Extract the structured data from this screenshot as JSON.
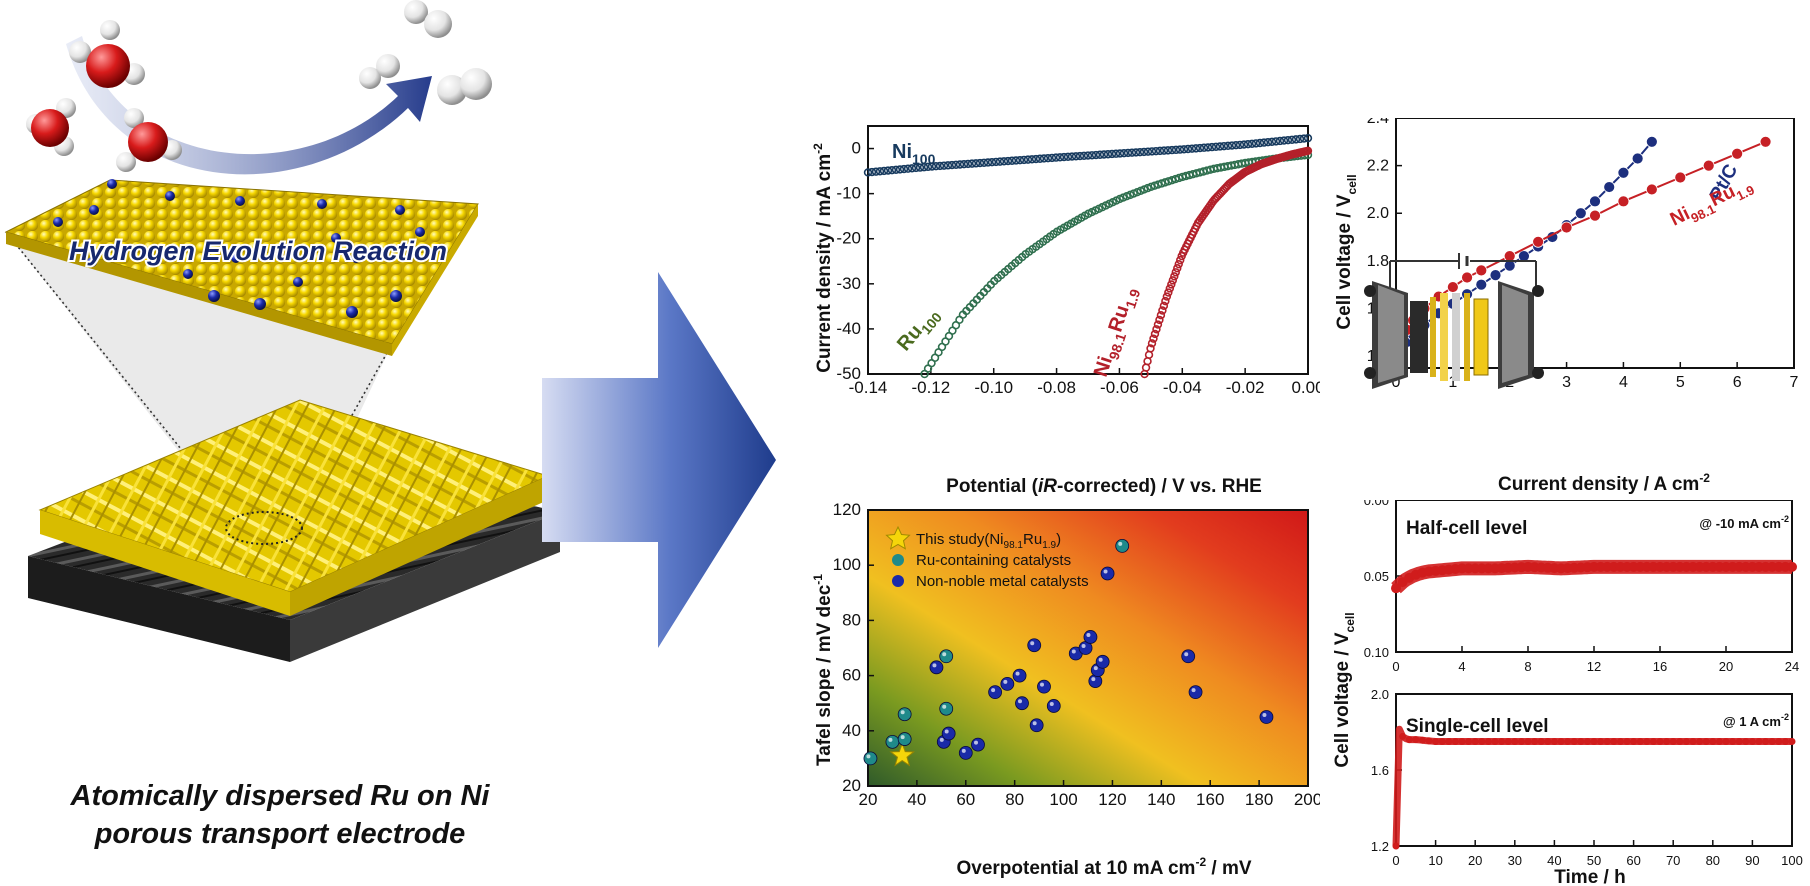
{
  "illustration": {
    "hero_label": "Hydrogen Evolution Reaction",
    "caption_line1": "Atomically dispersed Ru on Ni",
    "caption_line2": "porous transport electrode",
    "colors": {
      "nickel": "#f4d600",
      "ruthenium": "#1a2aa8",
      "oxygen": "#d81b1b",
      "hydrogen": "#f2f2f2",
      "support": "#2b2b2b"
    }
  },
  "chart_data": [
    {
      "type": "line",
      "id": "polarization",
      "xlabel": "Potential (iR-corrected) / V vs. RHE",
      "ylabel": "Current density / mA cm",
      "xlim": [
        -0.14,
        0.0
      ],
      "ylim": [
        -50,
        5
      ],
      "xticks": [
        -0.14,
        -0.12,
        -0.1,
        -0.08,
        -0.06,
        -0.04,
        -0.02,
        0.0
      ],
      "xtick_labels": [
        "-0.14",
        "-0.12",
        "-0.10",
        "-0.08",
        "-0.06",
        "-0.04",
        "-0.02",
        "0.00"
      ],
      "yticks": [
        0,
        -10,
        -20,
        -30,
        -40,
        -50
      ],
      "series": [
        {
          "name": "Ni100",
          "color": "#173a5e",
          "x": [
            -0.14,
            -0.12,
            -0.1,
            -0.08,
            -0.06,
            -0.04,
            -0.02,
            0.0
          ],
          "y": [
            -5.3,
            -4.0,
            -3.0,
            -2.0,
            -1.1,
            -0.2,
            0.9,
            2.3
          ]
        },
        {
          "name": "Ru100",
          "color": "#2f6f4e",
          "x": [
            -0.122,
            -0.11,
            -0.1,
            -0.09,
            -0.08,
            -0.07,
            -0.06,
            -0.05,
            -0.04,
            -0.03,
            -0.02,
            -0.01,
            0.0
          ],
          "y": [
            -50,
            -37,
            -29.5,
            -23.5,
            -18.5,
            -14.5,
            -11.2,
            -8.5,
            -6.3,
            -4.5,
            -3.2,
            -2.2,
            -1.4
          ]
        },
        {
          "name": "Ni98.1Ru1.9",
          "color": "#b3202a",
          "x": [
            -0.052,
            -0.05,
            -0.045,
            -0.04,
            -0.035,
            -0.03,
            -0.025,
            -0.02,
            -0.015,
            -0.01,
            -0.005,
            0.0
          ],
          "y": [
            -50,
            -44,
            -33,
            -23.5,
            -16.5,
            -11.5,
            -7.8,
            -5.2,
            -3.5,
            -2.3,
            -1.3,
            -0.5
          ]
        }
      ]
    },
    {
      "type": "scatter",
      "id": "tafel",
      "xlabel": "Overpotential at 10 mA cm",
      "ylabel": "Tafel slope / mV dec",
      "xlim": [
        20,
        200
      ],
      "ylim": [
        20,
        120
      ],
      "xticks": [
        20,
        40,
        60,
        80,
        100,
        120,
        140,
        160,
        180,
        200
      ],
      "yticks": [
        20,
        40,
        60,
        80,
        100,
        120
      ],
      "series": [
        {
          "name": "This study(Ni98.1Ru1.9)",
          "marker": "star",
          "color": "#f5d60a",
          "points": [
            [
              34,
              31
            ]
          ]
        },
        {
          "name": "Ru-containing catalysts",
          "marker": "ball",
          "color": "#1f8a8a",
          "points": [
            [
              21,
              30
            ],
            [
              30,
              36
            ],
            [
              35,
              37
            ],
            [
              35,
              46
            ],
            [
              52,
              48
            ],
            [
              52,
              67
            ],
            [
              124,
              107
            ]
          ]
        },
        {
          "name": "Non-noble metal catalysts",
          "marker": "ball",
          "color": "#1a2aa8",
          "points": [
            [
              48,
              63
            ],
            [
              51,
              36
            ],
            [
              53,
              39
            ],
            [
              60,
              32
            ],
            [
              65,
              35
            ],
            [
              72,
              54
            ],
            [
              77,
              57
            ],
            [
              82,
              60
            ],
            [
              83,
              50
            ],
            [
              88,
              71
            ],
            [
              89,
              42
            ],
            [
              92,
              56
            ],
            [
              96,
              49
            ],
            [
              105,
              68
            ],
            [
              109,
              70
            ],
            [
              111,
              74
            ],
            [
              113,
              58
            ],
            [
              114,
              62
            ],
            [
              116,
              65
            ],
            [
              118,
              97
            ],
            [
              151,
              67
            ],
            [
              154,
              54
            ],
            [
              183,
              45
            ]
          ]
        }
      ]
    },
    {
      "type": "line",
      "id": "cell_polarization",
      "xlabel": "Current density / A cm",
      "ylabel": "Cell voltage / V",
      "xlim": [
        0,
        7
      ],
      "ylim": [
        1.35,
        2.4
      ],
      "xticks": [
        0,
        1,
        2,
        3,
        4,
        5,
        6,
        7
      ],
      "yticks": [
        1.4,
        1.6,
        1.8,
        2.0,
        2.2,
        2.4
      ],
      "ytick_labels": [
        "1.4",
        "1.6",
        "1.8",
        "2.0",
        "2.2",
        "2.4"
      ],
      "series": [
        {
          "name": "Pt/C",
          "color": "#1d2f7e",
          "x": [
            0.0,
            0.05,
            0.1,
            0.2,
            0.3,
            0.5,
            0.75,
            1.0,
            1.25,
            1.5,
            1.75,
            2.0,
            2.25,
            2.5,
            2.75,
            3.0,
            3.25,
            3.5,
            3.75,
            4.0,
            4.25,
            4.5
          ],
          "y": [
            1.38,
            1.41,
            1.43,
            1.46,
            1.49,
            1.53,
            1.58,
            1.62,
            1.66,
            1.7,
            1.74,
            1.78,
            1.82,
            1.86,
            1.9,
            1.95,
            2.0,
            2.05,
            2.11,
            2.17,
            2.23,
            2.3
          ]
        },
        {
          "name": "Ni98.1Ru1.9",
          "color": "#c62025",
          "x": [
            0.0,
            0.05,
            0.1,
            0.2,
            0.3,
            0.5,
            0.75,
            1.0,
            1.25,
            1.5,
            2.0,
            2.5,
            3.0,
            3.5,
            4.0,
            4.5,
            5.0,
            5.5,
            6.0,
            6.5
          ],
          "y": [
            1.36,
            1.42,
            1.46,
            1.51,
            1.55,
            1.6,
            1.65,
            1.69,
            1.73,
            1.76,
            1.82,
            1.88,
            1.94,
            1.99,
            2.05,
            2.1,
            2.15,
            2.2,
            2.25,
            2.3
          ]
        }
      ]
    },
    {
      "type": "line",
      "id": "half_cell_stability",
      "title": "Half-cell level",
      "annotation": "@ -10 mA cm",
      "xlim": [
        0,
        24
      ],
      "ylim": [
        0.1,
        0.0
      ],
      "xticks": [
        0,
        4,
        8,
        12,
        16,
        20,
        24
      ],
      "yticks": [
        0.0,
        0.05,
        0.1
      ],
      "ytick_labels": [
        "0.00",
        "0.05",
        "0.10"
      ],
      "series": [
        {
          "name": "",
          "color": "#d01c1c",
          "x": [
            0,
            0.5,
            1,
            1.5,
            2,
            3,
            4,
            6,
            8,
            10,
            12,
            14,
            16,
            18,
            20,
            22,
            24
          ],
          "y": [
            0.058,
            0.053,
            0.05,
            0.048,
            0.047,
            0.046,
            0.045,
            0.045,
            0.044,
            0.045,
            0.044,
            0.044,
            0.044,
            0.044,
            0.044,
            0.044,
            0.044
          ]
        }
      ]
    },
    {
      "type": "line",
      "id": "single_cell_stability",
      "title": "Single-cell level",
      "annotation": "@ 1 A cm",
      "xlabel": "Time / h",
      "xlim": [
        0,
        100
      ],
      "ylim": [
        1.2,
        2.0
      ],
      "xticks": [
        0,
        10,
        20,
        30,
        40,
        50,
        60,
        70,
        80,
        90,
        100
      ],
      "yticks": [
        1.2,
        1.6,
        2.0
      ],
      "ytick_labels": [
        "1.2",
        "1.6",
        "2.0"
      ],
      "series": [
        {
          "name": "",
          "color": "#d01c1c",
          "x": [
            0,
            0.3,
            0.6,
            1,
            2,
            3,
            5,
            10,
            20,
            30,
            40,
            50,
            60,
            70,
            80,
            90,
            100
          ],
          "y": [
            1.2,
            1.97,
            1.85,
            1.79,
            1.77,
            1.76,
            1.76,
            1.75,
            1.75,
            1.75,
            1.75,
            1.75,
            1.75,
            1.75,
            1.75,
            1.75,
            1.75
          ]
        }
      ]
    }
  ],
  "shared_ylabel": "Cell voltage / V"
}
